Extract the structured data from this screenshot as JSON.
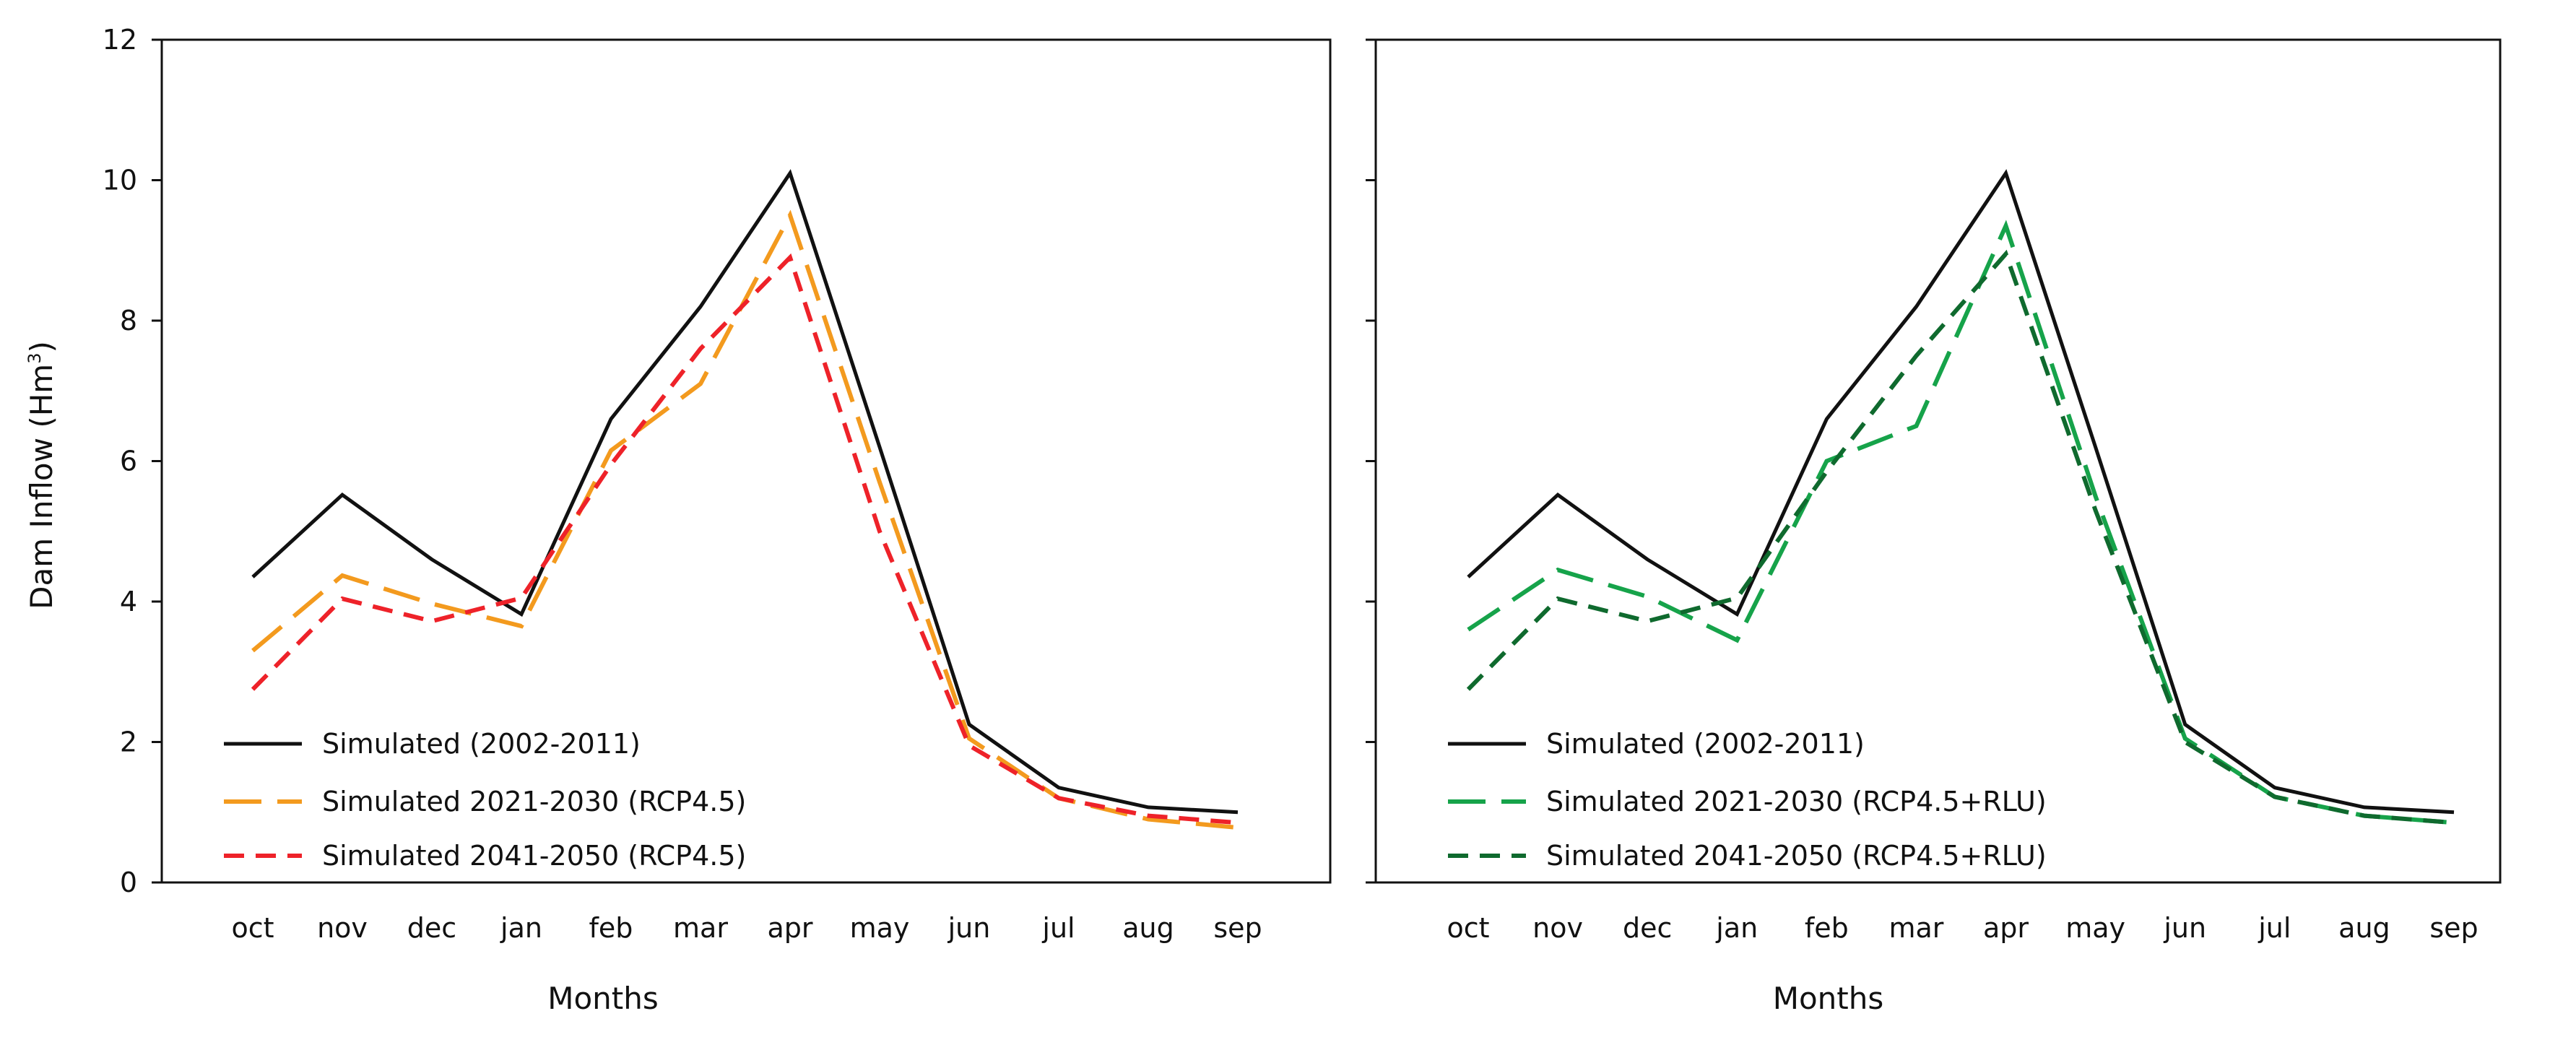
{
  "chart_data": [
    {
      "type": "line",
      "categories": [
        "oct",
        "nov",
        "dec",
        "jan",
        "feb",
        "mar",
        "apr",
        "may",
        "jun",
        "jul",
        "aug",
        "sep"
      ],
      "xlabel": "Months",
      "ylabel": "Dam Inflow (Hm",
      "ylabel_sup": "3",
      "ylabel_close": ")",
      "ylim": [
        0,
        12
      ],
      "yticks": [
        "0",
        "2",
        "4",
        "6",
        "8",
        "10",
        "12"
      ],
      "legend_position": "bottom-left",
      "series": [
        {
          "name": "Simulated (2002-2011)",
          "color": "#111111",
          "dash": "solid",
          "values": [
            4.35,
            5.52,
            4.6,
            3.82,
            6.6,
            8.2,
            10.1,
            6.2,
            2.25,
            1.35,
            1.07,
            1.0
          ]
        },
        {
          "name": "Simulated 2021-2030 (RCP4.5)",
          "color": "#F39A1E",
          "dash": "long",
          "values": [
            3.3,
            4.37,
            3.97,
            3.65,
            6.15,
            7.1,
            9.5,
            5.7,
            2.05,
            1.2,
            0.9,
            0.78
          ]
        },
        {
          "name": "Simulated 2041-2050 (RCP4.5)",
          "color": "#EE2229",
          "dash": "short",
          "values": [
            2.75,
            4.04,
            3.72,
            4.05,
            5.95,
            7.6,
            8.9,
            5.0,
            1.95,
            1.2,
            0.95,
            0.85
          ]
        }
      ]
    },
    {
      "type": "line",
      "categories": [
        "oct",
        "nov",
        "dec",
        "jan",
        "feb",
        "mar",
        "apr",
        "may",
        "jun",
        "jul",
        "aug",
        "sep"
      ],
      "xlabel": "Months",
      "ylim": [
        0,
        12
      ],
      "legend_position": "bottom-left",
      "series": [
        {
          "name": "Simulated (2002-2011)",
          "color": "#111111",
          "dash": "solid",
          "values": [
            4.35,
            5.52,
            4.6,
            3.82,
            6.6,
            8.2,
            10.1,
            6.2,
            2.25,
            1.35,
            1.07,
            1.0
          ]
        },
        {
          "name": "Simulated 2021-2030 (RCP4.5+RLU)",
          "color": "#16A34A",
          "dash": "long",
          "values": [
            3.6,
            4.45,
            4.07,
            3.45,
            6.0,
            6.5,
            9.35,
            5.5,
            2.05,
            1.22,
            0.95,
            0.85
          ]
        },
        {
          "name": "Simulated 2041-2050 (RCP4.5+RLU)",
          "color": "#0F6A2E",
          "dash": "short",
          "values": [
            2.75,
            4.04,
            3.72,
            4.05,
            5.85,
            7.5,
            8.95,
            5.3,
            2.0,
            1.22,
            0.95,
            0.85
          ]
        }
      ]
    }
  ]
}
